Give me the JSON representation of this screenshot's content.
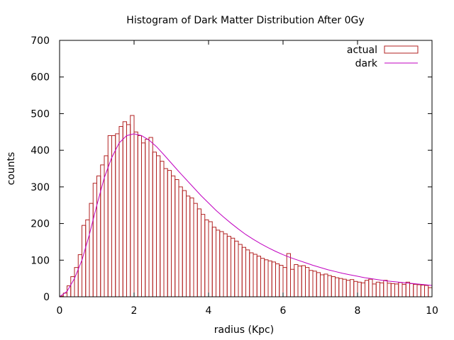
{
  "chart_data": {
    "type": "bar",
    "title": "Histogram of Dark Matter Distribution After 0Gy",
    "xlabel": "radius (Kpc)",
    "ylabel": "counts",
    "xlim": [
      0,
      10
    ],
    "ylim": [
      0,
      700
    ],
    "xticks": [
      "0",
      "2",
      "4",
      "6",
      "8",
      "10"
    ],
    "yticks": [
      "0",
      "100",
      "200",
      "300",
      "400",
      "500",
      "600",
      "700"
    ],
    "bin_width": 0.1,
    "legend_position": "top-right",
    "colors": {
      "actual": "#b22222",
      "dark": "#c000c0",
      "axis": "#000000"
    },
    "series": [
      {
        "name": "actual",
        "type": "histogram",
        "x": [
          0.05,
          0.15,
          0.25,
          0.35,
          0.45,
          0.55,
          0.65,
          0.75,
          0.85,
          0.95,
          1.05,
          1.15,
          1.25,
          1.35,
          1.45,
          1.55,
          1.65,
          1.75,
          1.85,
          1.95,
          2.05,
          2.15,
          2.25,
          2.35,
          2.45,
          2.55,
          2.65,
          2.75,
          2.85,
          2.95,
          3.05,
          3.15,
          3.25,
          3.35,
          3.45,
          3.55,
          3.65,
          3.75,
          3.85,
          3.95,
          4.05,
          4.15,
          4.25,
          4.35,
          4.45,
          4.55,
          4.65,
          4.75,
          4.85,
          4.95,
          5.05,
          5.15,
          5.25,
          5.35,
          5.45,
          5.55,
          5.65,
          5.75,
          5.85,
          5.95,
          6.05,
          6.15,
          6.25,
          6.35,
          6.45,
          6.55,
          6.65,
          6.75,
          6.85,
          6.95,
          7.05,
          7.15,
          7.25,
          7.35,
          7.45,
          7.55,
          7.65,
          7.75,
          7.85,
          7.95,
          8.05,
          8.15,
          8.25,
          8.35,
          8.45,
          8.55,
          8.65,
          8.75,
          8.85,
          8.95,
          9.05,
          9.15,
          9.25,
          9.35,
          9.45,
          9.55,
          9.65,
          9.75,
          9.85,
          9.95
        ],
        "values": [
          2,
          10,
          30,
          55,
          80,
          115,
          195,
          210,
          255,
          310,
          330,
          360,
          385,
          440,
          440,
          445,
          465,
          478,
          470,
          495,
          450,
          440,
          420,
          430,
          435,
          395,
          385,
          370,
          350,
          345,
          330,
          320,
          300,
          290,
          275,
          270,
          255,
          240,
          225,
          210,
          205,
          190,
          182,
          178,
          172,
          165,
          160,
          152,
          143,
          135,
          128,
          120,
          116,
          111,
          105,
          101,
          98,
          95,
          90,
          86,
          80,
          118,
          75,
          88,
          84,
          85,
          80,
          72,
          70,
          66,
          60,
          62,
          58,
          55,
          52,
          50,
          48,
          45,
          47,
          42,
          40,
          38,
          45,
          48,
          35,
          40,
          38,
          45,
          37,
          36,
          35,
          39,
          34,
          40,
          36,
          34,
          33,
          32,
          31,
          25
        ]
      },
      {
        "name": "dark",
        "type": "line",
        "x": [
          0.0,
          0.2,
          0.4,
          0.6,
          0.8,
          1.0,
          1.2,
          1.4,
          1.6,
          1.8,
          2.0,
          2.2,
          2.4,
          2.6,
          2.8,
          3.0,
          3.2,
          3.4,
          3.6,
          3.8,
          4.0,
          4.2,
          4.4,
          4.6,
          4.8,
          5.0,
          5.2,
          5.4,
          5.6,
          5.8,
          6.0,
          6.2,
          6.4,
          6.6,
          6.8,
          7.0,
          7.2,
          7.4,
          7.6,
          7.8,
          8.0,
          8.2,
          8.4,
          8.6,
          8.8,
          9.0,
          9.2,
          9.4,
          9.6,
          9.8,
          10.0
        ],
        "values": [
          0,
          15,
          50,
          100,
          170,
          250,
          325,
          380,
          420,
          440,
          445,
          440,
          428,
          410,
          388,
          365,
          342,
          320,
          298,
          276,
          256,
          236,
          218,
          201,
          185,
          170,
          157,
          145,
          134,
          124,
          115,
          107,
          100,
          93,
          86,
          80,
          74,
          69,
          64,
          60,
          56,
          52,
          49,
          46,
          43,
          41,
          39,
          37,
          35,
          33,
          31
        ]
      }
    ]
  }
}
